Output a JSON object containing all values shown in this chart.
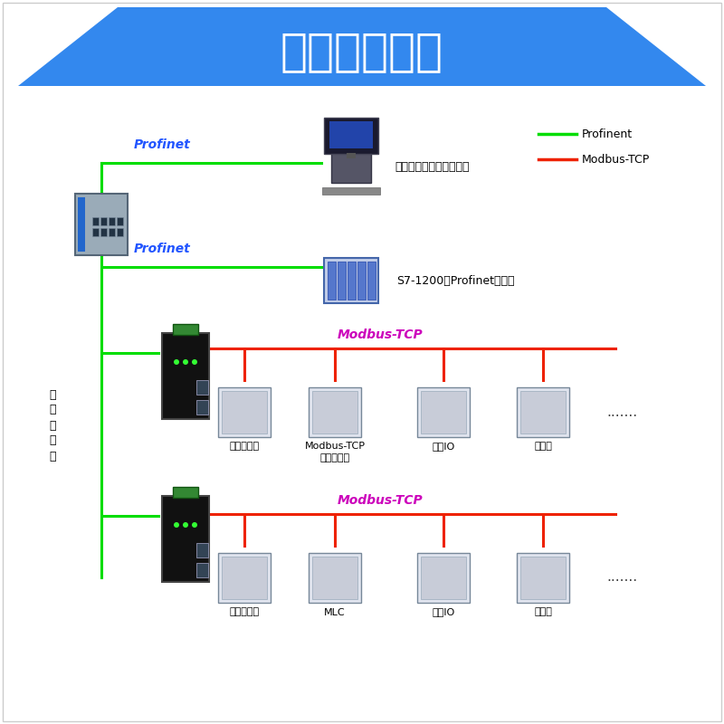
{
  "title": "产品功能展示",
  "title_bg_color": "#3388ee",
  "title_text_color": "#ffffff",
  "bg_color": "#ffffff",
  "green_color": "#00dd00",
  "red_color": "#ee2200",
  "blue_label_color": "#2255ff",
  "magenta_label_color": "#cc00bb",
  "legend_profinet": "Profinent",
  "legend_modbus": "Modbus-TCP",
  "label_switch": "工\n业\n交\n换\n机",
  "label_ipc": "工控机（安装组态软件）",
  "label_s7": "S7-1200（Profinet主站）",
  "label_servo1": "伺服驱动器",
  "label_modbus_ctrl": "Modbus-TCP\n总线控制器",
  "label_remote_io1": "远程IO",
  "label_inverter1": "变频器",
  "label_servo2": "伺服驱动器",
  "label_mlc": "MLC",
  "label_remote_io2": "远程IO",
  "label_inverter2": "变频器",
  "label_profinet1": "Profinet",
  "label_profinet2": "Profinet",
  "label_modbus1": "Modbus-TCP",
  "label_modbus2": "Modbus-TCP",
  "dots": ".......",
  "border_color": "#cccccc"
}
